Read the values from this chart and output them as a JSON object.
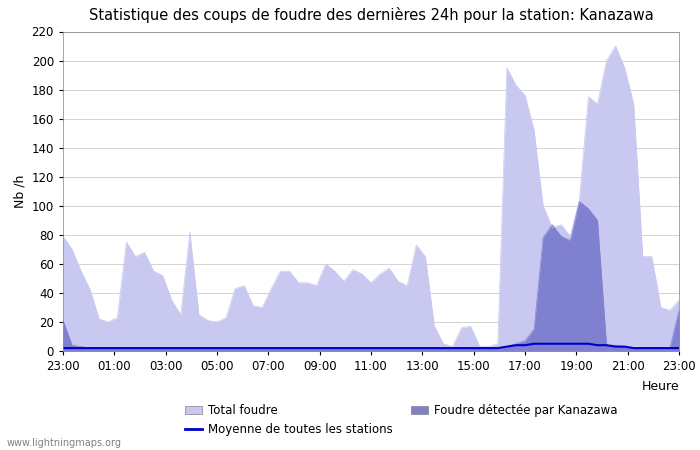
{
  "title": "Statistique des coups de foudre des dernières 24h pour la station: Kanazawa",
  "xlabel": "Heure",
  "ylabel": "Nb /h",
  "ylim": [
    0,
    220
  ],
  "yticks": [
    0,
    20,
    40,
    60,
    80,
    100,
    120,
    140,
    160,
    180,
    200,
    220
  ],
  "x_labels": [
    "23:00",
    "01:00",
    "03:00",
    "05:00",
    "07:00",
    "09:00",
    "11:00",
    "13:00",
    "15:00",
    "17:00",
    "19:00",
    "21:00",
    "23:00"
  ],
  "color_total": "#c8c8f0",
  "color_local": "#8080d0",
  "color_moyenne": "#0000cc",
  "watermark": "www.lightningmaps.org",
  "total_foudre": [
    79,
    70,
    55,
    42,
    22,
    20,
    23,
    75,
    65,
    68,
    55,
    52,
    35,
    25,
    82,
    25,
    21,
    20,
    23,
    43,
    45,
    31,
    30,
    43,
    55,
    55,
    47,
    47,
    45,
    60,
    55,
    48,
    56,
    53,
    47,
    53,
    57,
    48,
    45,
    73,
    65,
    17,
    5,
    3,
    16,
    17,
    3,
    3,
    5,
    195,
    183,
    176,
    152,
    100,
    85,
    87,
    79,
    104,
    175,
    170,
    200,
    210,
    195,
    170,
    65,
    65,
    30,
    28,
    35
  ],
  "local_foudre": [
    21,
    4,
    3,
    2,
    2,
    2,
    2,
    2,
    2,
    2,
    2,
    2,
    2,
    2,
    2,
    2,
    2,
    2,
    2,
    2,
    2,
    2,
    2,
    2,
    2,
    2,
    2,
    2,
    2,
    2,
    2,
    2,
    2,
    2,
    2,
    2,
    2,
    2,
    2,
    2,
    2,
    2,
    2,
    2,
    2,
    2,
    2,
    2,
    2,
    3,
    5,
    7,
    15,
    78,
    87,
    79,
    76,
    103,
    98,
    90,
    4,
    4,
    3,
    2,
    2,
    2,
    2,
    2,
    28
  ],
  "moyenne": [
    2,
    2,
    2,
    2,
    2,
    2,
    2,
    2,
    2,
    2,
    2,
    2,
    2,
    2,
    2,
    2,
    2,
    2,
    2,
    2,
    2,
    2,
    2,
    2,
    2,
    2,
    2,
    2,
    2,
    2,
    2,
    2,
    2,
    2,
    2,
    2,
    2,
    2,
    2,
    2,
    2,
    2,
    2,
    2,
    2,
    2,
    2,
    2,
    2,
    3,
    4,
    4,
    5,
    5,
    5,
    5,
    5,
    5,
    5,
    4,
    4,
    3,
    3,
    2,
    2,
    2,
    2,
    2,
    2
  ]
}
